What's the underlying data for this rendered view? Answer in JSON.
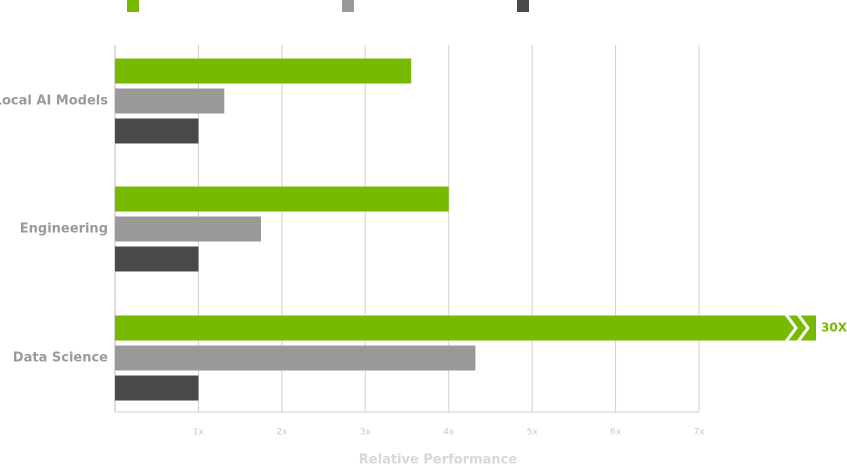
{
  "chart_data": {
    "type": "bar",
    "orientation": "horizontal",
    "categories": [
      "Local AI Models",
      "Engineering",
      "Data Science"
    ],
    "series": [
      {
        "color": "#76b900",
        "values": [
          3.55,
          4.0,
          30
        ],
        "value_labels": [
          null,
          null,
          "30X"
        ]
      },
      {
        "color": "#999999",
        "values": [
          1.31,
          1.75,
          4.32
        ]
      },
      {
        "color": "#4a4a4a",
        "values": [
          1,
          1,
          1
        ]
      }
    ],
    "xlim": [
      0,
      7
    ],
    "xticks": [
      {
        "value": 1,
        "label": "1x"
      },
      {
        "value": 2,
        "label": "2x"
      },
      {
        "value": 3,
        "label": "3x"
      },
      {
        "value": 4,
        "label": "4x"
      },
      {
        "value": 5,
        "label": "5x"
      },
      {
        "value": 6,
        "label": "6x"
      },
      {
        "value": 7,
        "label": "7x"
      }
    ],
    "xlabel": "Relative Performance",
    "grid": true
  }
}
